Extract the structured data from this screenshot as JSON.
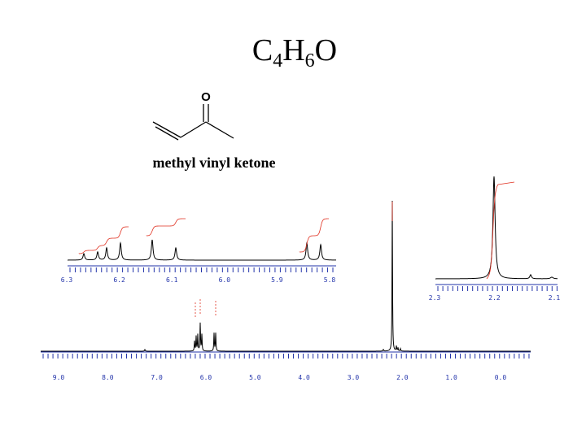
{
  "formula": {
    "parts": [
      "C",
      "4",
      "H",
      "6",
      "O"
    ]
  },
  "molecule": {
    "atom_label": "O",
    "name": "methyl vinyl ketone"
  },
  "main_axis": {
    "tick_labels": [
      "9.0",
      "8.0",
      "7.0",
      "6.0",
      "5.0",
      "4.0",
      "3.0",
      "2.0",
      "1.0",
      "0.0"
    ]
  },
  "inset_vinyl_axis": {
    "tick_labels": [
      "6.3",
      "6.2",
      "6.1",
      "6.0",
      "5.9",
      "5.8"
    ]
  },
  "inset_methyl_axis": {
    "tick_labels": [
      "2.3",
      "2.2",
      "2.1"
    ]
  }
}
